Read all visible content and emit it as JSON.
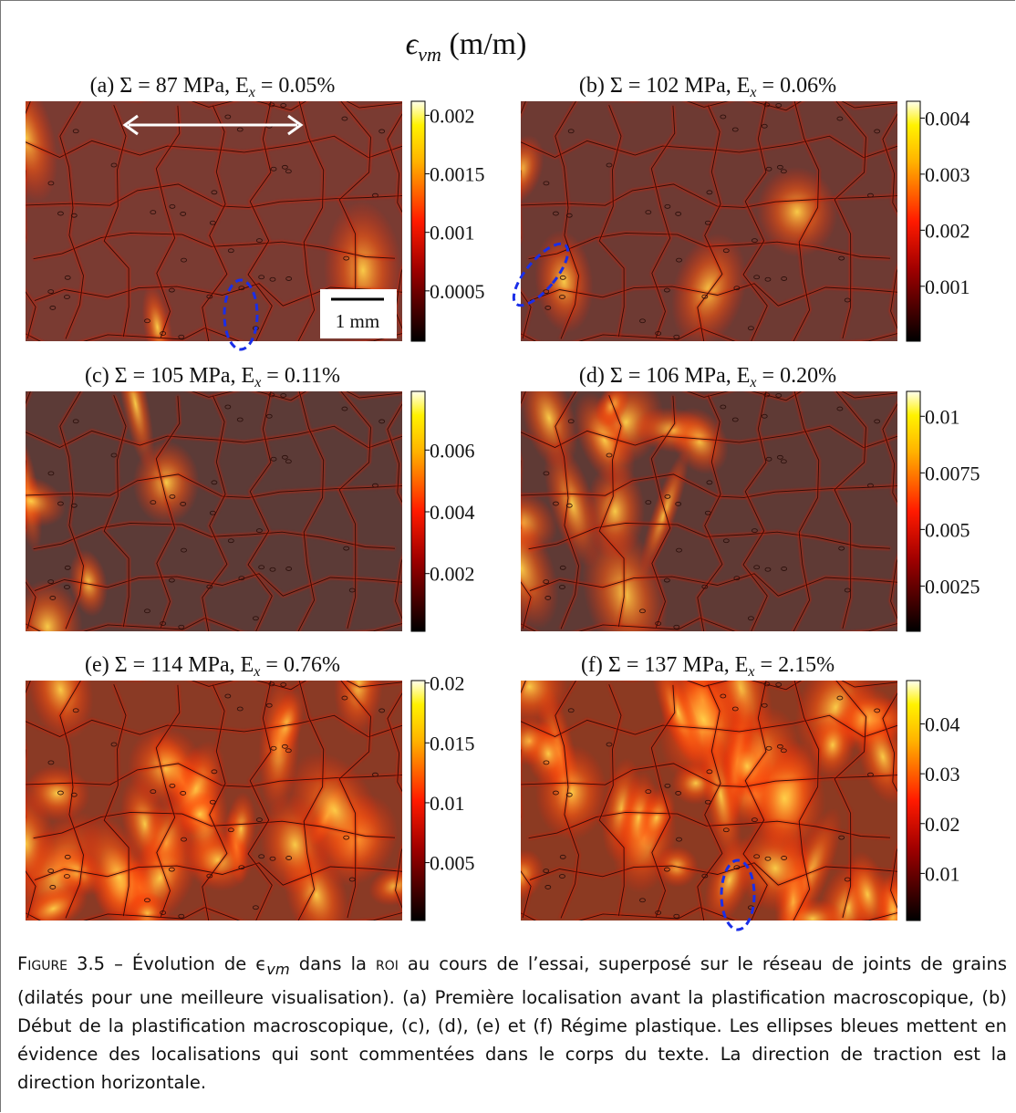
{
  "figure": {
    "heading": {
      "symbol": "ϵ",
      "sub": "vm",
      "unit": " (m/m)"
    },
    "scale_bar": "1 mm",
    "panels": [
      {
        "title_main": "(a) Σ = 87 MPa, E",
        "title_sub": "x",
        "title_end": " = 0.05%",
        "colorbar_lim": [
          7e-05,
          0.00212
        ],
        "colorbar_ticks": [
          0.0005,
          0.001,
          0.0015,
          0.002
        ]
      },
      {
        "title_main": "(b) Σ = 102 MPa, E",
        "title_sub": "x",
        "title_end": " = 0.06%",
        "colorbar_lim": [
          2e-05,
          0.0043
        ],
        "colorbar_ticks": [
          0.001,
          0.002,
          0.003,
          0.004
        ]
      },
      {
        "title_main": "(c) Σ = 105 MPa, E",
        "title_sub": "x",
        "title_end": " = 0.11%",
        "colorbar_lim": [
          0.00013,
          0.0079
        ],
        "colorbar_ticks": [
          0.002,
          0.004,
          0.006
        ]
      },
      {
        "title_main": "(d) Σ = 106 MPa, E",
        "title_sub": "x",
        "title_end": " = 0.20%",
        "colorbar_lim": [
          0.0005,
          0.0111
        ],
        "colorbar_ticks": [
          0.0025,
          0.005,
          0.0075,
          0.01
        ]
      },
      {
        "title_main": "(e) Σ = 114 MPa, E",
        "title_sub": "x",
        "title_end": " = 0.76%",
        "colorbar_lim": [
          0.00017,
          0.0202
        ],
        "colorbar_ticks": [
          0.005,
          0.01,
          0.015,
          0.02
        ]
      },
      {
        "title_main": "(f) Σ = 137 MPa, E",
        "title_sub": "x",
        "title_end": " = 2.15%",
        "colorbar_lim": [
          0.00055,
          0.0487
        ],
        "colorbar_ticks": [
          0.01,
          0.02,
          0.03,
          0.04
        ]
      }
    ],
    "caption": {
      "label": "Figure 3.5",
      "part1": " – Évolution de ϵ",
      "sub": "vm",
      "part2": " dans la ",
      "acronym": "roi",
      "part3": " au cours de l’essai, superposé sur le réseau de joints de grains (dilatés pour une meilleure visualisation). (a) Première localisation avant la plastification macroscopique, (b) Début de la plastification macroscopique, (c), (d), (e) et (f) Régime plastique. Les ellipses bleues mettent en évidence des localisations qui sont commentées dans le corps du texte. La direction de traction est la direction horizontale."
    }
  }
}
